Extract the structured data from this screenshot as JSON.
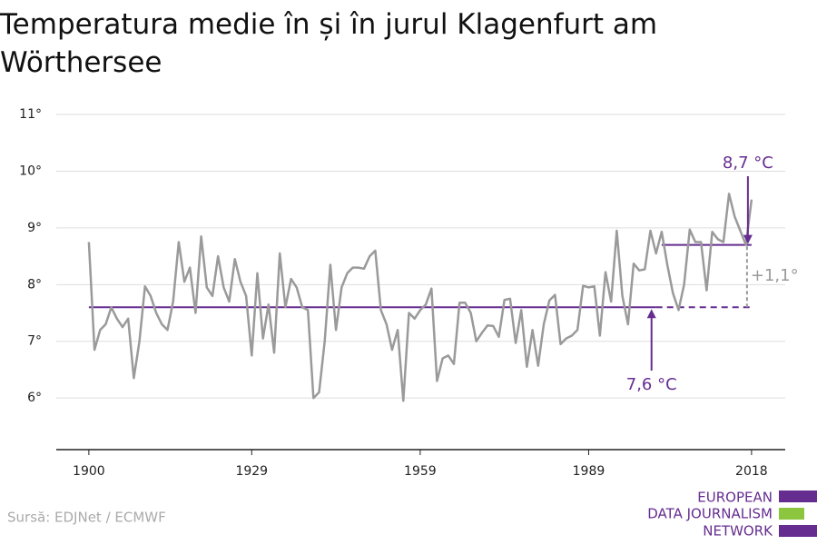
{
  "chart_data": {
    "type": "line",
    "title": "Temperatura medie în și în jurul Klagenfurt am Wörthersee",
    "source": "Sursă: EDJNet / ECMWF",
    "logo": [
      "EUROPEAN",
      "DATA JOURNALISM",
      "NETWORK"
    ],
    "x": [
      1900,
      1901,
      1902,
      1903,
      1904,
      1905,
      1906,
      1907,
      1908,
      1909,
      1910,
      1911,
      1912,
      1913,
      1914,
      1915,
      1916,
      1917,
      1918,
      1919,
      1920,
      1921,
      1922,
      1923,
      1924,
      1925,
      1926,
      1927,
      1928,
      1929,
      1930,
      1931,
      1932,
      1933,
      1934,
      1935,
      1936,
      1937,
      1938,
      1939,
      1940,
      1941,
      1942,
      1943,
      1944,
      1945,
      1946,
      1947,
      1948,
      1949,
      1950,
      1951,
      1952,
      1953,
      1954,
      1955,
      1956,
      1957,
      1958,
      1959,
      1960,
      1961,
      1962,
      1963,
      1964,
      1965,
      1966,
      1967,
      1968,
      1969,
      1970,
      1971,
      1972,
      1973,
      1974,
      1975,
      1976,
      1977,
      1978,
      1979,
      1980,
      1981,
      1982,
      1983,
      1984,
      1985,
      1986,
      1987,
      1988,
      1989,
      1990,
      1991,
      1992,
      1993,
      1994,
      1995,
      1996,
      1997,
      1998,
      1999,
      2000,
      2001,
      2002,
      2003,
      2004,
      2005,
      2006,
      2007,
      2008,
      2009,
      2010,
      2011,
      2012,
      2013,
      2014,
      2015,
      2016,
      2017,
      2018
    ],
    "series": [
      {
        "color": "#9a9a9a",
        "values": [
          8.75,
          6.85,
          7.2,
          7.3,
          7.6,
          7.4,
          7.25,
          7.4,
          6.35,
          7.0,
          7.97,
          7.8,
          7.5,
          7.3,
          7.2,
          7.7,
          8.75,
          8.05,
          8.3,
          7.5,
          8.85,
          7.95,
          7.8,
          8.5,
          7.95,
          7.7,
          8.45,
          8.05,
          7.8,
          6.75,
          8.2,
          7.05,
          7.65,
          6.8,
          8.55,
          7.6,
          8.1,
          7.95,
          7.6,
          7.55,
          6.0,
          6.1,
          7.0,
          8.35,
          7.2,
          7.95,
          8.2,
          8.3,
          8.3,
          8.28,
          8.5,
          8.6,
          7.55,
          7.3,
          6.85,
          7.2,
          5.95,
          7.5,
          7.4,
          7.55,
          7.65,
          7.93,
          6.3,
          6.7,
          6.75,
          6.6,
          7.68,
          7.68,
          7.5,
          7.0,
          7.15,
          7.28,
          7.27,
          7.08,
          7.73,
          7.75,
          6.97,
          7.55,
          6.55,
          7.2,
          6.57,
          7.3,
          7.72,
          7.82,
          6.95,
          7.05,
          7.1,
          7.2,
          7.98,
          7.95,
          7.97,
          7.1,
          8.22,
          7.7,
          8.95,
          7.8,
          7.3,
          8.37,
          8.25,
          8.27,
          8.95,
          8.55,
          8.93,
          8.35,
          7.85,
          7.55,
          8.0,
          8.97,
          8.75,
          8.75,
          7.9,
          8.93,
          8.8,
          8.75,
          9.6,
          9.2,
          8.95,
          8.7,
          9.5
        ]
      }
    ],
    "reference_lines": [
      {
        "label": "7,6 °C",
        "value": 7.6,
        "color": "#662d91",
        "x": [
          1900,
          2001
        ],
        "dashed_x": [
          2001,
          2018
        ]
      },
      {
        "label": "8,7 °C",
        "value": 8.7,
        "color": "#662d91",
        "x": [
          2002,
          2018
        ]
      }
    ],
    "difference": {
      "value": 1.1,
      "label": "+1,1°",
      "color": "#9a9a9a"
    },
    "xlim": [
      1894.2,
      2024
    ],
    "xticks": [
      1900,
      1929,
      1959,
      1989,
      2018
    ],
    "ylim": [
      5.09,
      11.2
    ],
    "yticks": [
      {
        "value": 6,
        "label": "6°"
      },
      {
        "value": 7,
        "label": "7°"
      },
      {
        "value": 8,
        "label": "8°"
      },
      {
        "value": 9,
        "label": "9°"
      },
      {
        "value": 10,
        "label": "10°"
      },
      {
        "value": 11,
        "label": "11°"
      }
    ],
    "grid": true
  }
}
